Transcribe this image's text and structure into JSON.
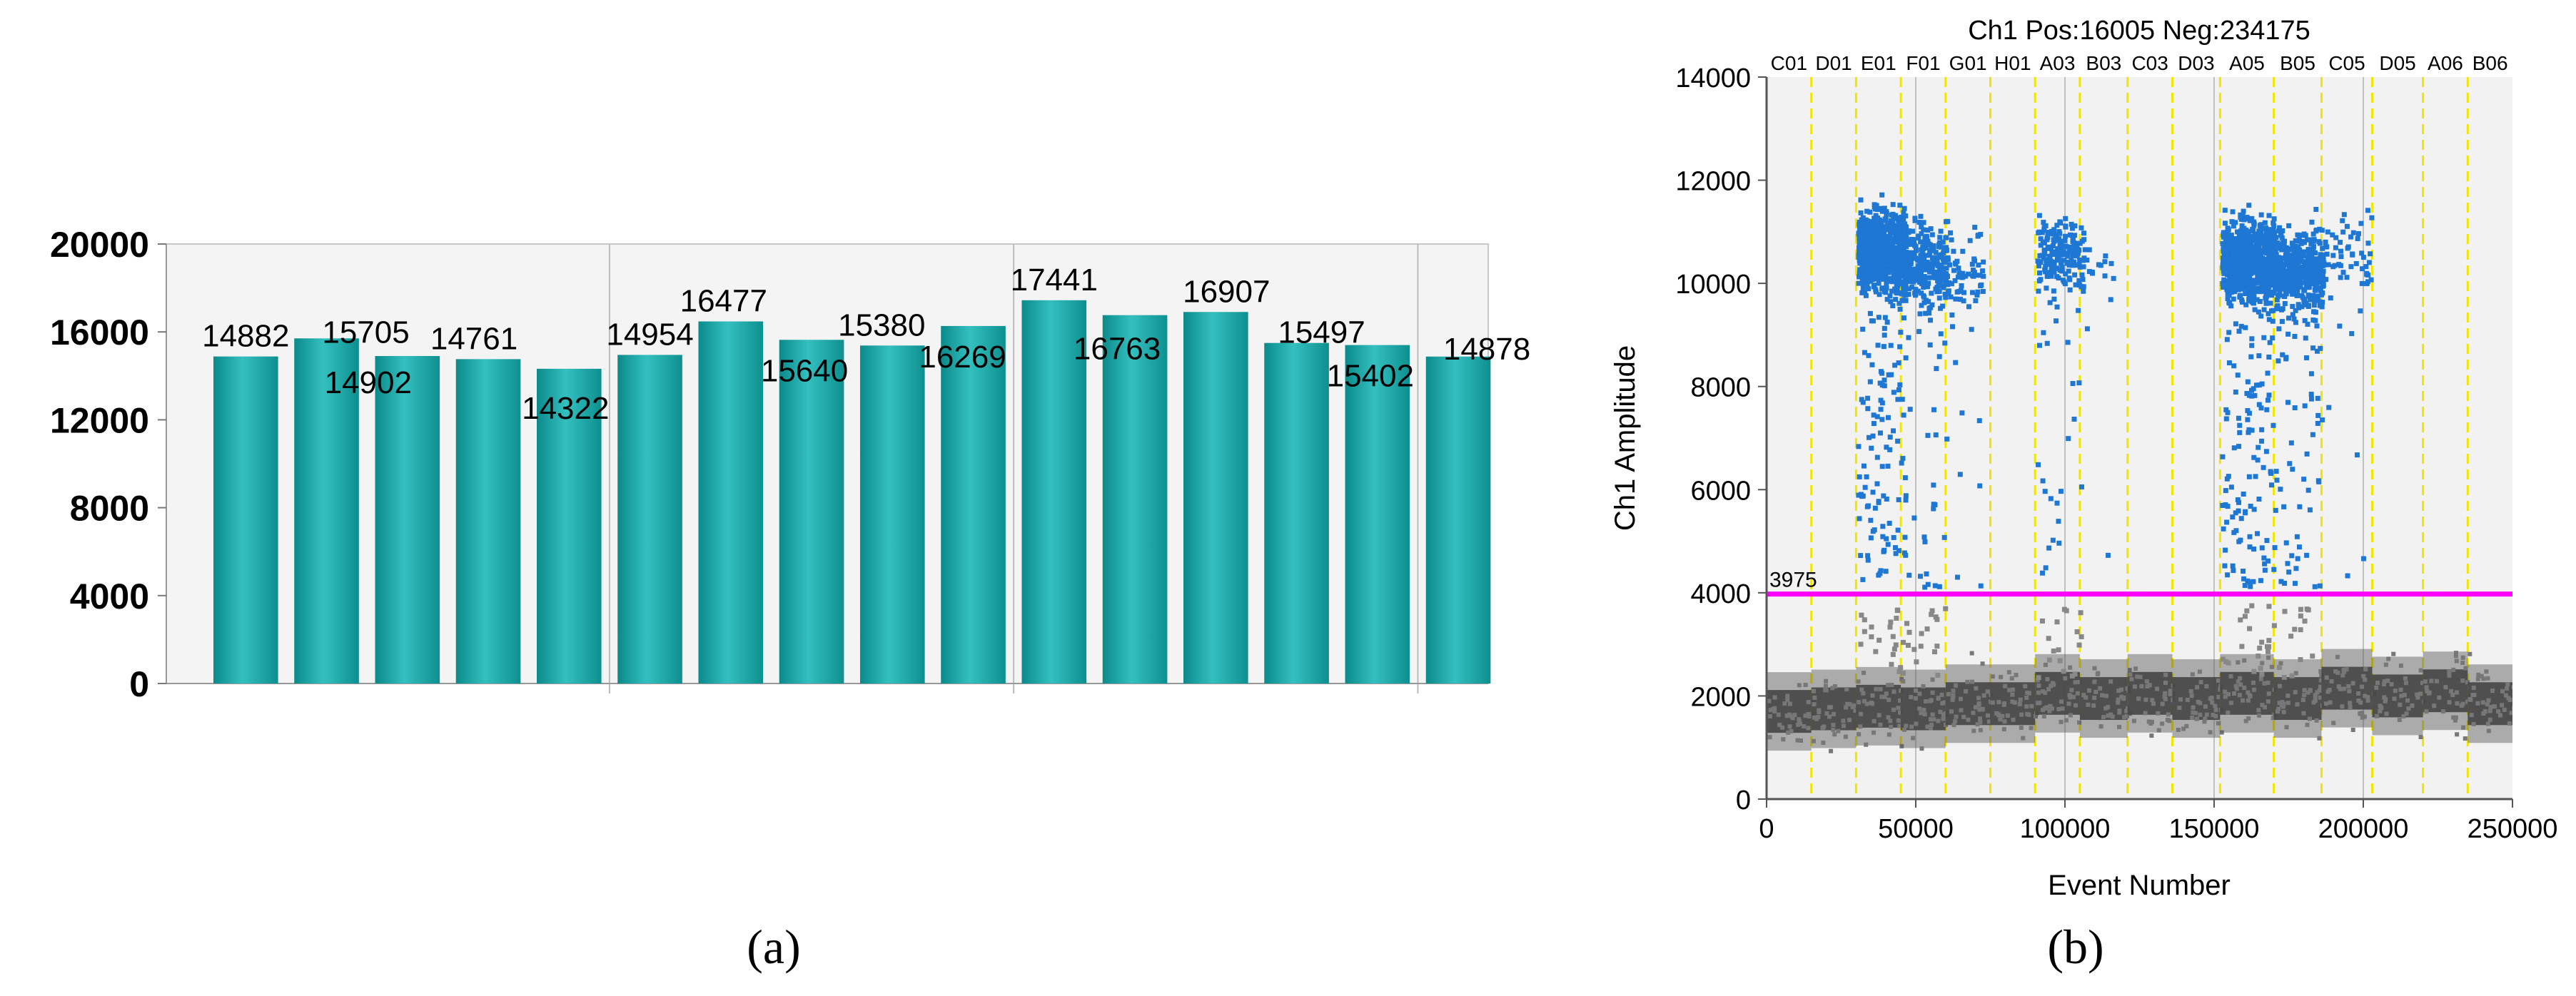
{
  "panels": [
    {
      "caption": "(a)",
      "chart_data": {
        "type": "bar",
        "title": "",
        "xlabel": "",
        "ylabel": "",
        "ylim": [
          0,
          20000
        ],
        "yticks": [
          0,
          4000,
          8000,
          12000,
          16000,
          20000
        ],
        "grid": "vertical gridlines every 5 bars",
        "colors": {
          "bar": "#0f9797",
          "bar_light": "#3fc3c3",
          "plot_bg": "#f4f4f4",
          "grid": "#bbbbbb"
        },
        "values": [
          14882,
          15705,
          14902,
          14761,
          14322,
          14954,
          16477,
          15640,
          15380,
          16269,
          17441,
          16763,
          16907,
          15497,
          15402,
          14878
        ],
        "data_labels": [
          "14882",
          "15705",
          "14902",
          "14761",
          "14322",
          "14954",
          "16477",
          "15640",
          "15380",
          "16269",
          "17441",
          "16763",
          "16907",
          "15497",
          "15402",
          "14878"
        ]
      }
    },
    {
      "caption": "(b)",
      "chart_data": {
        "type": "scatter",
        "title": "Ch1 Pos:16005 Neg:234175",
        "xlabel": "Event Number",
        "ylabel": "Ch1 Amplitude",
        "xlim": [
          0,
          250000
        ],
        "ylim": [
          0,
          14000
        ],
        "xticks": [
          0,
          50000,
          100000,
          150000,
          200000,
          250000
        ],
        "yticks": [
          0,
          2000,
          4000,
          6000,
          8000,
          10000,
          12000,
          14000
        ],
        "threshold": {
          "value": 3975,
          "label": "3975",
          "color": "#ff00ff"
        },
        "colors": {
          "positive": "#1f77d4",
          "negative": "#333333",
          "plot_bg": "#f2f2f2",
          "well_divider": "#f2e600"
        },
        "wells": [
          "C01",
          "D01",
          "E01",
          "F01",
          "G01",
          "H01",
          "A03",
          "B03",
          "C03",
          "D03",
          "A05",
          "B05",
          "C05",
          "D05",
          "A06",
          "B06"
        ],
        "well_boundaries": [
          0,
          15000,
          30000,
          45000,
          60000,
          75000,
          90000,
          105000,
          121000,
          136000,
          152000,
          170000,
          186000,
          203000,
          220000,
          235000,
          250000
        ],
        "positive_clusters": [
          {
            "well": "E01",
            "x_range": [
              30000,
              46000
            ],
            "y_center": 10700,
            "count": 900
          },
          {
            "well": "F01",
            "x_range": [
              45000,
              60000
            ],
            "y_center": 10400,
            "count": 300
          },
          {
            "well": "G01",
            "x_range": [
              60000,
              72000
            ],
            "y_center": 10200,
            "count": 70
          },
          {
            "well": "A03",
            "x_range": [
              90000,
              106000
            ],
            "y_center": 10600,
            "count": 220
          },
          {
            "well": "B03",
            "x_range": [
              106000,
              118000
            ],
            "y_center": 10300,
            "count": 15
          },
          {
            "well": "A05",
            "x_range": [
              152000,
              170000
            ],
            "y_center": 10500,
            "count": 1000
          },
          {
            "well": "B05",
            "x_range": [
              170000,
              186000
            ],
            "y_center": 10300,
            "count": 520
          },
          {
            "well": "C05",
            "x_range": [
              186000,
              203000
            ],
            "y_center": 10600,
            "count": 60
          }
        ],
        "negative_band_levels": [
          1700,
          1750,
          1800,
          1750,
          1850,
          1850,
          2050,
          1950,
          2050,
          1950,
          2050,
          1950,
          2150,
          2000,
          2100,
          1850
        ]
      }
    }
  ]
}
